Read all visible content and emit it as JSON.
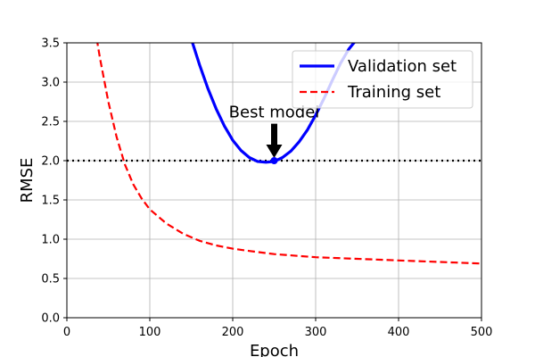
{
  "chart_data": {
    "type": "line",
    "xlabel": "Epoch",
    "ylabel": "RMSE",
    "xlim": [
      0,
      500
    ],
    "ylim": [
      0,
      3.5
    ],
    "xticks": [
      0,
      100,
      200,
      300,
      400,
      500
    ],
    "yticks": [
      0.0,
      0.5,
      1.0,
      1.5,
      2.0,
      2.5,
      3.0,
      3.5
    ],
    "grid": true,
    "legend_position": "top-right",
    "series": [
      {
        "name": "Validation set",
        "color": "#0000ff",
        "style": "solid",
        "x": [
          150,
          160,
          170,
          180,
          190,
          200,
          210,
          220,
          230,
          240,
          250,
          260,
          270,
          280,
          290,
          300,
          310,
          320,
          330,
          340,
          350,
          360,
          365
        ],
        "y": [
          3.55,
          3.22,
          2.92,
          2.66,
          2.44,
          2.26,
          2.13,
          2.04,
          1.99,
          1.98,
          1.99,
          2.04,
          2.12,
          2.24,
          2.39,
          2.58,
          2.79,
          3.02,
          3.24,
          3.42,
          3.55,
          3.66,
          3.72
        ]
      },
      {
        "name": "Training set",
        "color": "#ff0000",
        "style": "dashed",
        "x": [
          36,
          40,
          50,
          60,
          70,
          80,
          90,
          100,
          120,
          140,
          160,
          180,
          200,
          220,
          250,
          300,
          350,
          400,
          450,
          500
        ],
        "y": [
          3.55,
          3.3,
          2.75,
          2.3,
          1.95,
          1.7,
          1.52,
          1.38,
          1.2,
          1.07,
          0.98,
          0.92,
          0.88,
          0.85,
          0.81,
          0.77,
          0.75,
          0.73,
          0.71,
          0.69
        ]
      }
    ],
    "reference_line": {
      "y": 2.0,
      "color": "#000000",
      "style": "dotted"
    },
    "annotations": [
      {
        "text": "Best model",
        "x": 250,
        "y": 2.0,
        "text_y": 2.55,
        "arrow": true
      }
    ]
  }
}
